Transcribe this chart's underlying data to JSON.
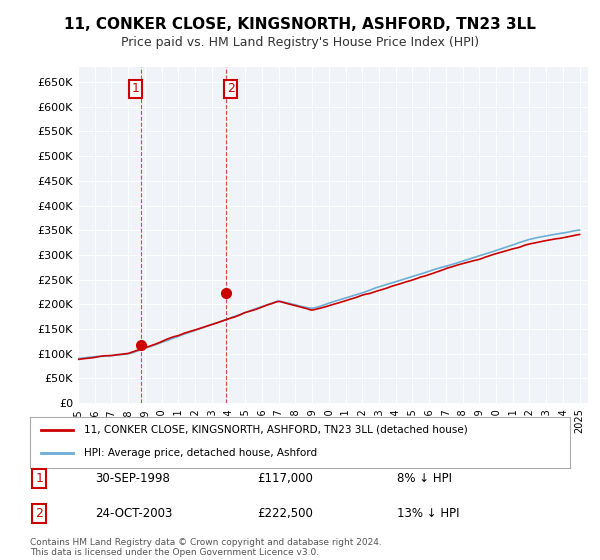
{
  "title": "11, CONKER CLOSE, KINGSNORTH, ASHFORD, TN23 3LL",
  "subtitle": "Price paid vs. HM Land Registry's House Price Index (HPI)",
  "ylabel_ticks": [
    "£0",
    "£50K",
    "£100K",
    "£150K",
    "£200K",
    "£250K",
    "£300K",
    "£350K",
    "£400K",
    "£450K",
    "£500K",
    "£550K",
    "£600K",
    "£650K"
  ],
  "ytick_vals": [
    0,
    50000,
    100000,
    150000,
    200000,
    250000,
    300000,
    350000,
    400000,
    450000,
    500000,
    550000,
    600000,
    650000
  ],
  "ylim": [
    0,
    680000
  ],
  "hpi_color": "#6baed6",
  "price_color": "#cc0000",
  "marker_color": "#cc0000",
  "vline_color": "#cc0000",
  "transaction1": {
    "date": "30-SEP-1998",
    "price": 117000,
    "label": "1",
    "pct": "8%",
    "dir": "↓"
  },
  "transaction2": {
    "date": "24-OCT-2003",
    "price": 222500,
    "label": "2",
    "pct": "13%",
    "dir": "↓"
  },
  "legend_property": "11, CONKER CLOSE, KINGSNORTH, ASHFORD, TN23 3LL (detached house)",
  "legend_hpi": "HPI: Average price, detached house, Ashford",
  "footnote": "Contains HM Land Registry data © Crown copyright and database right 2024.\nThis data is licensed under the Open Government Licence v3.0.",
  "background_color": "#ffffff",
  "plot_bg_color": "#f0f4f8"
}
